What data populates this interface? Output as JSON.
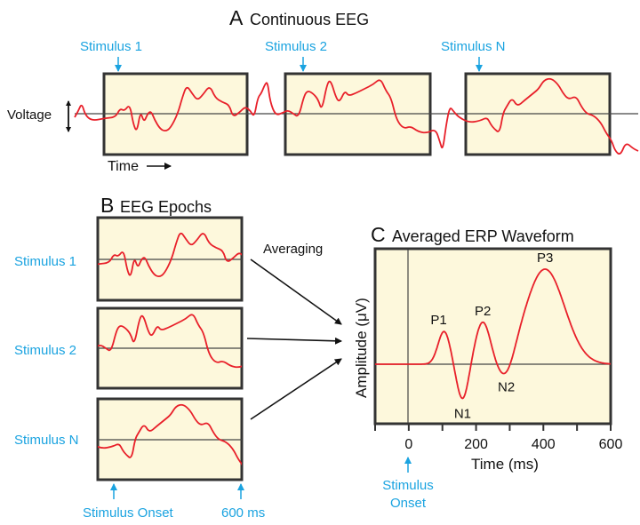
{
  "panel_a": {
    "letter": "A",
    "title": "Continuous EEG",
    "stimuli": [
      "Stimulus 1",
      "Stimulus 2",
      "Stimulus N"
    ],
    "y_label": "Voltage",
    "x_label": "Time"
  },
  "panel_b": {
    "letter": "B",
    "title": "EEG Epochs",
    "epochs": [
      "Stimulus 1",
      "Stimulus 2",
      "Stimulus N"
    ],
    "onset_label": "Stimulus Onset",
    "end_label": "600 ms",
    "averaging_label": "Averaging"
  },
  "panel_c": {
    "letter": "C",
    "title": "Averaged ERP Waveform",
    "y_label": "Amplitude (μV)",
    "x_label": "Time (ms)",
    "x_ticks": [
      "0",
      "200",
      "400",
      "600"
    ],
    "x_range_ms": [
      -100,
      600
    ],
    "onset_label_line1": "Stimulus",
    "onset_label_line2": "Onset",
    "components": [
      {
        "name": "P1",
        "latency_ms": 105
      },
      {
        "name": "N1",
        "latency_ms": 160
      },
      {
        "name": "P2",
        "latency_ms": 220
      },
      {
        "name": "N2",
        "latency_ms": 290
      },
      {
        "name": "P3",
        "latency_ms": 405
      }
    ]
  },
  "colors": {
    "wave": "#e8202a",
    "stimulus_text": "#1aa3e0",
    "box_fill": "#fdf8dc"
  }
}
